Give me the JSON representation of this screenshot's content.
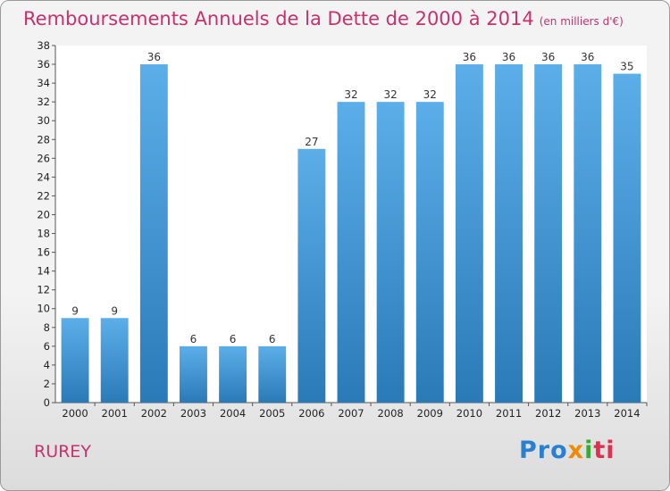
{
  "header": {
    "title": "Remboursements Annuels de la Dette de 2000 à 2014",
    "unit": "(en milliers d'€)"
  },
  "footer": {
    "commune": "RUREY",
    "logo": [
      "Pro",
      "x",
      "i",
      "ti"
    ]
  },
  "colors": {
    "title": "#c8306e",
    "bar_top": "#5caee8",
    "bar_bottom": "#2a7ab8"
  },
  "chart_data": {
    "type": "bar",
    "title": "Remboursements Annuels de la Dette de 2000 à 2014",
    "xlabel": "",
    "ylabel": "",
    "categories": [
      "2000",
      "2001",
      "2002",
      "2003",
      "2004",
      "2005",
      "2006",
      "2007",
      "2008",
      "2009",
      "2010",
      "2011",
      "2012",
      "2013",
      "2014"
    ],
    "values": [
      9,
      9,
      36,
      6,
      6,
      6,
      27,
      32,
      32,
      32,
      36,
      36,
      36,
      36,
      35
    ],
    "ylim": [
      0,
      38
    ],
    "yticks": [
      0,
      2,
      4,
      6,
      8,
      10,
      12,
      14,
      16,
      18,
      20,
      22,
      24,
      26,
      28,
      30,
      32,
      34,
      36,
      38
    ],
    "grid": false,
    "legend": "none"
  }
}
